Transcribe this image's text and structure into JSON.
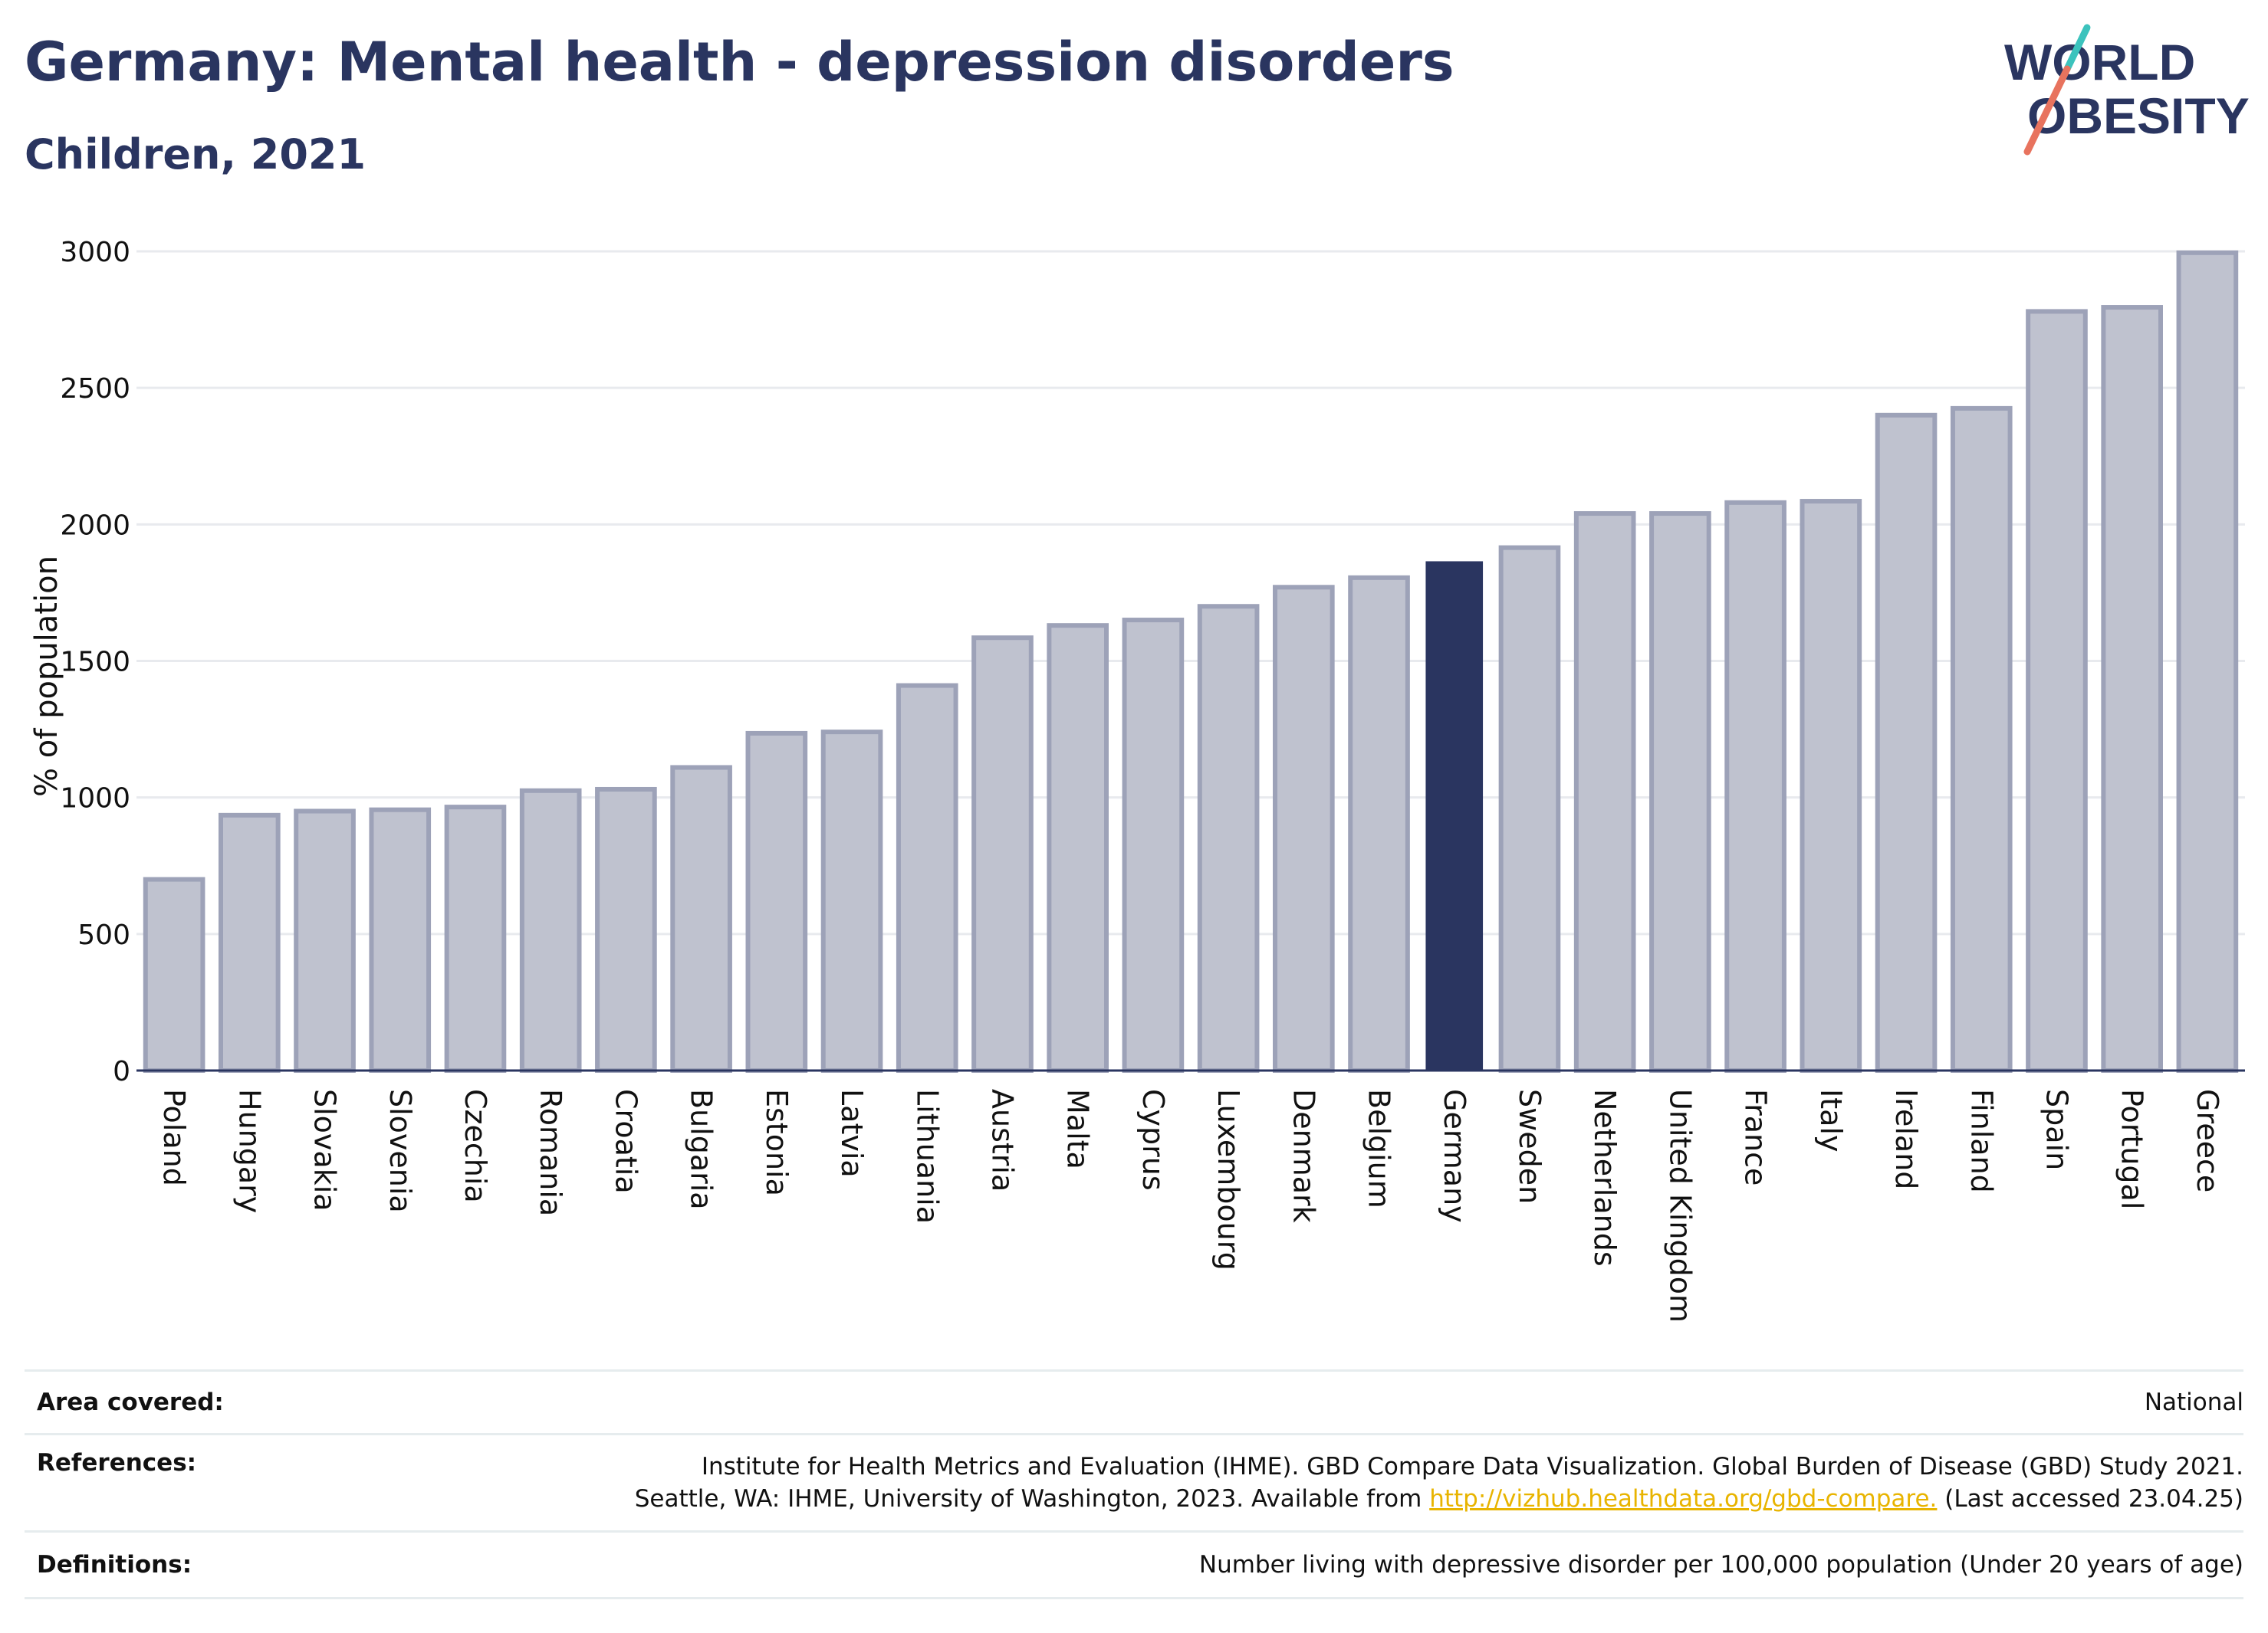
{
  "header": {
    "title": "Germany: Mental health - depression disorders",
    "subtitle": "Children, 2021"
  },
  "logo": {
    "line1": "WORLD",
    "line2": "OBESITY",
    "accent_teal": "#3cc3bd",
    "accent_coral": "#e8735e"
  },
  "colors": {
    "highlight": "#2a3560",
    "bar_fill": "#bfc2cf",
    "bar_stroke": "#9da2b8",
    "grid": "#e8eaee"
  },
  "chart_data": {
    "type": "bar",
    "ylabel": "% of population",
    "ylim": [
      0,
      3000
    ],
    "yticks": [
      0,
      500,
      1000,
      1500,
      2000,
      2500,
      3000
    ],
    "highlight": "Germany",
    "grid": true,
    "categories": [
      "Poland",
      "Hungary",
      "Slovakia",
      "Slovenia",
      "Czechia",
      "Romania",
      "Croatia",
      "Bulgaria",
      "Estonia",
      "Latvia",
      "Lithuania",
      "Austria",
      "Malta",
      "Cyprus",
      "Luxembourg",
      "Denmark",
      "Belgium",
      "Germany",
      "Sweden",
      "Netherlands",
      "United Kingdom",
      "France",
      "Italy",
      "Ireland",
      "Finland",
      "Spain",
      "Portugal",
      "Greece"
    ],
    "values": [
      700,
      935,
      950,
      955,
      965,
      1025,
      1030,
      1110,
      1235,
      1240,
      1410,
      1585,
      1630,
      1650,
      1700,
      1770,
      1805,
      1865,
      1915,
      2040,
      2040,
      2080,
      2085,
      2400,
      2425,
      2780,
      2795,
      2995
    ]
  },
  "footer": {
    "area_label": "Area covered:",
    "area_value": "National",
    "references_label": "References:",
    "references_line1": "Institute for Health Metrics and Evaluation (IHME). GBD Compare Data Visualization. Global Burden of Disease (GBD) Study 2021.",
    "references_line2_pre": "Seattle, WA: IHME, University of Washington, 2023. Available from",
    "references_link": "http://vizhub.healthdata.org/gbd-compare.",
    "references_line2_post": "(Last accessed 23.04.25)",
    "definitions_label": "Definitions:",
    "definitions_value": "Number living with depressive disorder per 100,000 population (Under 20 years of age)"
  }
}
